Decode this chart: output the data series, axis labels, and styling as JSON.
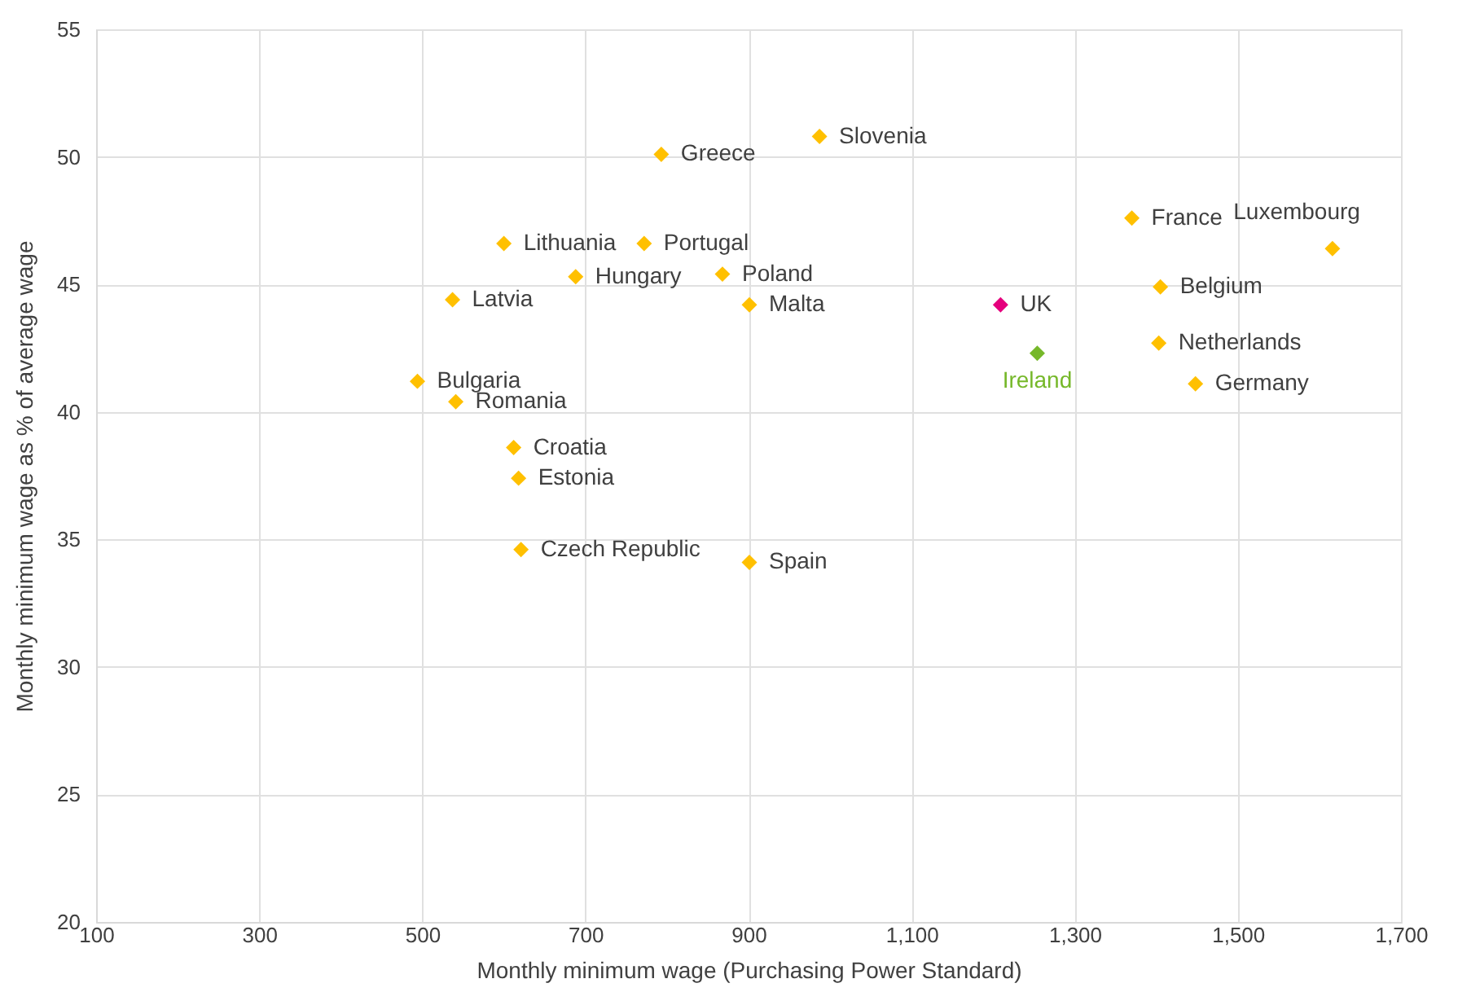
{
  "chart_data": {
    "type": "scatter",
    "xlabel": "Monthly minimum wage (Purchasing Power Standard)",
    "ylabel": "Monthly minimum wage as % of average wage",
    "xlim": [
      100,
      1700
    ],
    "xticks": [
      100,
      300,
      500,
      700,
      900,
      {
        "value": 1100,
        "label": "1,100"
      },
      {
        "value": 1300,
        "label": "1,300"
      },
      {
        "value": 1500,
        "label": "1,500"
      },
      {
        "value": 1700,
        "label": "1,700"
      }
    ],
    "ylim": [
      20,
      55
    ],
    "yticks": [
      20,
      25,
      30,
      35,
      40,
      45,
      50,
      55
    ],
    "grid": true,
    "marker": "diamond",
    "series": [
      {
        "color": "#ffc000",
        "x": [
          494,
          541,
          537,
          600,
          688,
          612,
          618,
          621,
          793,
          772,
          868,
          901,
          901,
          987,
          1370,
          1405,
          1403,
          1448,
          1616
        ],
        "values": [
          41.2,
          40.4,
          44.4,
          46.6,
          45.3,
          38.6,
          37.4,
          34.6,
          50.1,
          46.6,
          45.4,
          44.2,
          34.1,
          50.8,
          47.6,
          44.9,
          42.7,
          41.1,
          46.4
        ]
      },
      {
        "name": "UK",
        "color": "#e5007d",
        "x": [
          1209
        ],
        "values": [
          44.2
        ]
      },
      {
        "name": "Ireland",
        "color": "#76b82a",
        "x": [
          1254
        ],
        "values": [
          42.3
        ]
      }
    ],
    "annotations": [
      {
        "text": "Bulgaria",
        "x": 494,
        "y": 41.2
      },
      {
        "text": "Romania",
        "x": 541,
        "y": 40.4
      },
      {
        "text": "Latvia",
        "x": 537,
        "y": 44.4
      },
      {
        "text": "Lithuania",
        "x": 600,
        "y": 46.6
      },
      {
        "text": "Hungary",
        "x": 688,
        "y": 45.3
      },
      {
        "text": "Croatia",
        "x": 612,
        "y": 38.6
      },
      {
        "text": "Estonia",
        "x": 618,
        "y": 37.4
      },
      {
        "text": "Czech Republic",
        "x": 621,
        "y": 34.6
      },
      {
        "text": "Greece",
        "x": 793,
        "y": 50.1
      },
      {
        "text": "Portugal",
        "x": 772,
        "y": 46.6
      },
      {
        "text": "Poland",
        "x": 868,
        "y": 45.4
      },
      {
        "text": "Malta",
        "x": 901,
        "y": 44.2
      },
      {
        "text": "Spain",
        "x": 901,
        "y": 34.1
      },
      {
        "text": "Slovenia",
        "x": 987,
        "y": 50.8
      },
      {
        "text": "France",
        "x": 1370,
        "y": 47.6
      },
      {
        "text": "Belgium",
        "x": 1405,
        "y": 44.9
      },
      {
        "text": "Netherlands",
        "x": 1403,
        "y": 42.7
      },
      {
        "text": "Germany",
        "x": 1448,
        "y": 41.1
      },
      {
        "text": "Luxembourg",
        "x": 1616,
        "y": 46.4
      }
    ]
  }
}
